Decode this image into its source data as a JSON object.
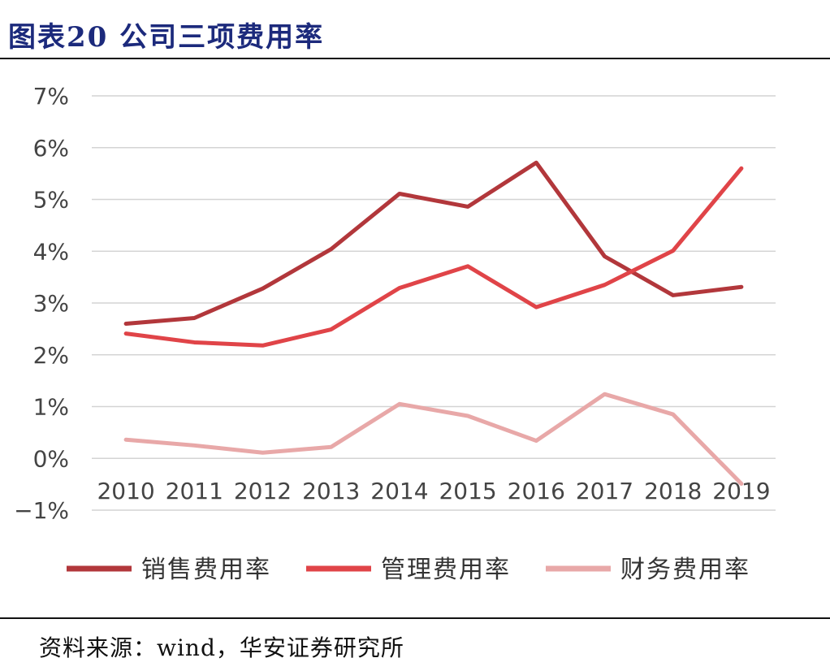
{
  "header": {
    "title": "图表20 公司三项费用率"
  },
  "footer": {
    "source": "资料来源：wind，华安证券研究所"
  },
  "chart_data": {
    "type": "line",
    "title": "图表20 公司三项费用率",
    "xlabel": "",
    "ylabel": "",
    "categories": [
      "2010",
      "2011",
      "2012",
      "2013",
      "2014",
      "2015",
      "2016",
      "2017",
      "2018",
      "2019"
    ],
    "ylim": [
      -1,
      7
    ],
    "yticks": [
      -1,
      0,
      1,
      2,
      3,
      4,
      5,
      6,
      7
    ],
    "ytick_labels": [
      "−1%",
      "0%",
      "1%",
      "2%",
      "3%",
      "4%",
      "5%",
      "6%",
      "7%"
    ],
    "y_unit": "%",
    "grid": "horizontal",
    "legend_position": "bottom",
    "series": [
      {
        "name": "销售费用率",
        "color": "#b2373b",
        "values": [
          2.6,
          2.71,
          3.28,
          4.04,
          5.11,
          4.86,
          5.71,
          3.9,
          3.15,
          3.31
        ]
      },
      {
        "name": "管理费用率",
        "color": "#e04448",
        "values": [
          2.41,
          2.24,
          2.18,
          2.49,
          3.29,
          3.71,
          2.92,
          3.35,
          4.01,
          5.6
        ]
      },
      {
        "name": "财务费用率",
        "color": "#e8a8a8",
        "values": [
          0.36,
          0.25,
          0.11,
          0.22,
          1.05,
          0.82,
          0.34,
          1.24,
          0.85,
          -0.49
        ]
      }
    ]
  }
}
